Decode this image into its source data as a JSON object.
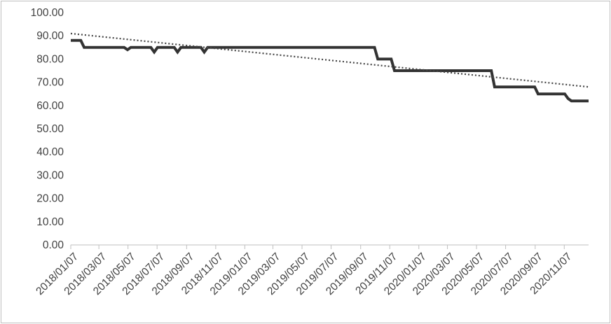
{
  "chart_data": {
    "type": "line",
    "title": "",
    "xlabel": "",
    "ylabel": "",
    "ylim": [
      0,
      100
    ],
    "y_ticks": [
      "0.00",
      "10.00",
      "20.00",
      "30.00",
      "40.00",
      "50.00",
      "60.00",
      "70.00",
      "80.00",
      "90.00",
      "100.00"
    ],
    "x_ticks": [
      "2018/01/07",
      "2018/03/07",
      "2018/05/07",
      "2018/07/07",
      "2018/09/07",
      "2018/11/07",
      "2019/01/07",
      "2019/03/07",
      "2019/05/07",
      "2019/07/07",
      "2019/09/07",
      "2019/11/07",
      "2020/01/07",
      "2020/03/07",
      "2020/05/07",
      "2020/07/07",
      "2020/09/07",
      "2020/11/07"
    ],
    "x_range": [
      "2018/01/07",
      "2020/12/28"
    ],
    "grid": false,
    "legend": "none",
    "series": [
      {
        "style": "solid",
        "color": "#333333",
        "points": [
          [
            "2018/01/07",
            88
          ],
          [
            "2018/01/28",
            88
          ],
          [
            "2018/02/04",
            85
          ],
          [
            "2018/04/29",
            85
          ],
          [
            "2018/05/06",
            84
          ],
          [
            "2018/05/13",
            85
          ],
          [
            "2018/06/24",
            85
          ],
          [
            "2018/07/01",
            83
          ],
          [
            "2018/07/08",
            85
          ],
          [
            "2018/08/12",
            85
          ],
          [
            "2018/08/19",
            83
          ],
          [
            "2018/08/26",
            85
          ],
          [
            "2018/10/07",
            85
          ],
          [
            "2018/10/14",
            83
          ],
          [
            "2018/10/21",
            85
          ],
          [
            "2019/10/06",
            85
          ],
          [
            "2019/10/13",
            80
          ],
          [
            "2019/11/10",
            80
          ],
          [
            "2019/11/17",
            75
          ],
          [
            "2020/06/07",
            75
          ],
          [
            "2020/06/14",
            68
          ],
          [
            "2020/09/06",
            68
          ],
          [
            "2020/09/13",
            65
          ],
          [
            "2020/11/08",
            65
          ],
          [
            "2020/11/15",
            63
          ],
          [
            "2020/11/22",
            62
          ],
          [
            "2020/12/28",
            62
          ]
        ]
      },
      {
        "style": "dotted",
        "color": "#444444",
        "points": [
          [
            "2018/01/07",
            91
          ],
          [
            "2020/12/28",
            68
          ]
        ]
      }
    ]
  }
}
